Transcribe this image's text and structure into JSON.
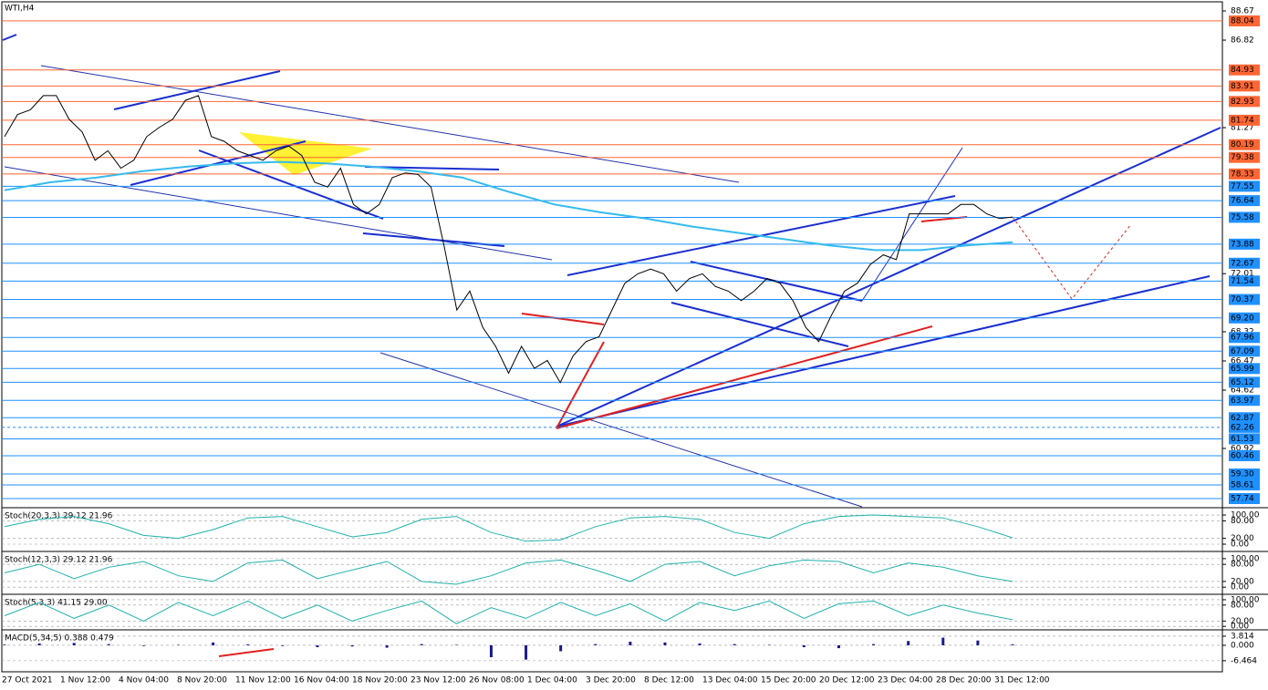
{
  "chart_data": [
    {
      "type": "line",
      "title": "WTI,H4",
      "ylim": [
        57.22,
        89.25
      ],
      "yticks": [
        88.67,
        86.82,
        81.27,
        72.01,
        68.32,
        66.47,
        64.62,
        60.92
      ],
      "time_labels": [
        "27 Oct 2021",
        "1 Nov 12:00",
        "4 Nov 04:00",
        "8 Nov 20:00",
        "11 Nov 12:00",
        "16 Nov 04:00",
        "18 Nov 20:00",
        "23 Nov 12:00",
        "26 Nov 08:00",
        "1 Dec 04:00",
        "3 Dec 20:00",
        "8 Dec 12:00",
        "13 Dec 04:00",
        "15 Dec 20:00",
        "20 Dec 12:00",
        "23 Dec 04:00",
        "28 Dec 20:00",
        "31 Dec 12:00"
      ],
      "color": "#000000",
      "values": [
        80.7,
        82.1,
        82.4,
        83.3,
        83.3,
        81.8,
        81.0,
        79.2,
        79.8,
        78.7,
        79.2,
        80.7,
        81.3,
        81.8,
        83.0,
        83.3,
        80.7,
        80.4,
        79.8,
        79.5,
        79.2,
        79.8,
        80.1,
        79.5,
        77.8,
        77.5,
        78.7,
        76.4,
        75.8,
        76.4,
        78.1,
        78.4,
        78.3,
        77.5,
        73.8,
        69.7,
        70.9,
        68.6,
        67.4,
        65.7,
        67.4,
        66.0,
        66.5,
        65.1,
        66.8,
        67.7,
        68.0,
        69.7,
        71.4,
        72.0,
        72.3,
        72.0,
        70.9,
        71.7,
        72.0,
        71.2,
        70.9,
        70.3,
        70.9,
        71.7,
        71.4,
        70.3,
        68.6,
        67.7,
        69.4,
        70.9,
        71.4,
        72.6,
        73.2,
        72.9,
        75.8,
        75.8,
        75.8,
        75.8,
        76.4,
        76.4,
        75.8,
        75.5,
        75.6
      ],
      "moving_average": {
        "color": "#33bbee",
        "values": [
          77.3,
          77.8,
          78.1,
          78.5,
          78.8,
          79.0,
          79.1,
          79.0,
          78.8,
          78.5,
          78.1,
          77.2,
          76.4,
          75.9,
          75.5,
          75.0,
          74.6,
          74.2,
          73.8,
          73.5,
          73.5,
          73.8,
          74.0
        ]
      },
      "levels": [
        {
          "value": 88.04,
          "label": "88.04",
          "color": "#ff6633"
        },
        {
          "value": 84.93,
          "label": "84.93",
          "color": "#ff6633"
        },
        {
          "value": 83.91,
          "label": "83.91",
          "color": "#ff6633"
        },
        {
          "value": 82.93,
          "label": "82.93",
          "color": "#ff6633"
        },
        {
          "value": 81.74,
          "label": "81.74",
          "color": "#ff6633"
        },
        {
          "value": 80.19,
          "label": "80.19",
          "color": "#ff6633"
        },
        {
          "value": 79.38,
          "label": "79.38",
          "color": "#ff6633"
        },
        {
          "value": 78.33,
          "label": "78.33",
          "color": "#ff6633"
        },
        {
          "value": 77.55,
          "label": "77.55",
          "color": "#1e90ff"
        },
        {
          "value": 76.64,
          "label": "76.64",
          "color": "#1e90ff"
        },
        {
          "value": 75.58,
          "label": "75.58",
          "color": "#1e90ff"
        },
        {
          "value": 73.88,
          "label": "73.88",
          "color": "#1e90ff"
        },
        {
          "value": 72.67,
          "label": "72.67",
          "color": "#1e90ff"
        },
        {
          "value": 71.54,
          "label": "71.54",
          "color": "#1e90ff"
        },
        {
          "value": 70.37,
          "label": "70.37",
          "color": "#1e90ff"
        },
        {
          "value": 69.2,
          "label": "69.20",
          "color": "#1e90ff"
        },
        {
          "value": 67.96,
          "label": "67.96",
          "color": "#1e90ff"
        },
        {
          "value": 67.09,
          "label": "67.09",
          "color": "#1e90ff"
        },
        {
          "value": 65.99,
          "label": "65.99",
          "color": "#1e90ff"
        },
        {
          "value": 65.12,
          "label": "65.12",
          "color": "#1e90ff"
        },
        {
          "value": 63.97,
          "label": "63.97",
          "color": "#1e90ff"
        },
        {
          "value": 62.87,
          "label": "62.87",
          "color": "#1e90ff"
        },
        {
          "value": 62.26,
          "label": "62.26",
          "color": "#1e90ff",
          "style": "dashed"
        },
        {
          "value": 61.53,
          "label": "61.53",
          "color": "#1e90ff"
        },
        {
          "value": 60.46,
          "label": "60.46",
          "color": "#1e90ff"
        },
        {
          "value": 59.3,
          "label": "59.30",
          "color": "#1e90ff"
        },
        {
          "value": 58.61,
          "label": "58.61",
          "color": "#1e90ff"
        },
        {
          "value": 57.74,
          "label": "57.74",
          "color": "#1e90ff"
        }
      ]
    },
    {
      "type": "line",
      "title": "Stoch(20,3,3) 29.12 21.96",
      "ylim": [
        -25,
        122
      ],
      "yticks": [
        {
          "value": 100,
          "label": "100.00"
        },
        {
          "value": 80,
          "label": "80.00"
        },
        {
          "value": 20,
          "label": "20.00"
        },
        {
          "value": 0,
          "label": "0.00"
        }
      ],
      "color": "#20b2aa",
      "values": [
        60,
        85,
        95,
        70,
        30,
        20,
        50,
        90,
        95,
        60,
        25,
        40,
        85,
        95,
        40,
        10,
        15,
        60,
        90,
        95,
        85,
        40,
        20,
        70,
        95,
        100,
        95,
        90,
        60,
        22
      ]
    },
    {
      "type": "line",
      "title": "Stoch(12,3,3) 29.12 21.96",
      "ylim": [
        -25,
        122
      ],
      "yticks": [
        {
          "value": 100,
          "label": "100.00"
        },
        {
          "value": 80,
          "label": "80.00"
        },
        {
          "value": 20,
          "label": "20.00"
        },
        {
          "value": 0,
          "label": "0.00"
        }
      ],
      "color": "#20b2aa",
      "values": [
        50,
        80,
        30,
        70,
        90,
        40,
        20,
        85,
        95,
        30,
        60,
        90,
        20,
        10,
        40,
        85,
        95,
        60,
        20,
        80,
        90,
        40,
        75,
        95,
        90,
        50,
        85,
        70,
        40,
        20
      ]
    },
    {
      "type": "line",
      "title": "Stoch(5,3,3) 41.15 29.00",
      "ylim": [
        -13,
        117
      ],
      "yticks": [
        {
          "value": 100,
          "label": "100.00"
        },
        {
          "value": 80,
          "label": "80.00"
        },
        {
          "value": 20,
          "label": "20.00"
        },
        {
          "value": 0,
          "label": "0.00"
        }
      ],
      "color": "#20b2aa",
      "values": [
        40,
        90,
        30,
        80,
        20,
        90,
        40,
        95,
        30,
        80,
        20,
        60,
        95,
        10,
        70,
        30,
        90,
        40,
        85,
        20,
        90,
        60,
        95,
        30,
        85,
        95,
        40,
        80,
        50,
        25
      ]
    },
    {
      "type": "bar",
      "title": "MACD(5,34,5) 0.388 0.479",
      "ylim": [
        -11.1,
        6.1
      ],
      "yticks": [
        {
          "value": 3.814,
          "label": "3.814"
        },
        {
          "value": 0,
          "label": "0.000"
        },
        {
          "value": -6.464,
          "label": "-6.464"
        }
      ],
      "color": "#1a1a8c",
      "values": [
        0.3,
        0.8,
        1.0,
        0.5,
        -0.3,
        0.2,
        1.2,
        0.4,
        -0.3,
        -0.8,
        -0.5,
        -1.0,
        0.5,
        0.2,
        -5.0,
        -6.0,
        -2.5,
        0.5,
        1.5,
        1.2,
        0.8,
        0.5,
        0.2,
        -0.8,
        -1.2,
        0.5,
        1.8,
        3.2,
        2.0,
        0.4
      ]
    }
  ]
}
